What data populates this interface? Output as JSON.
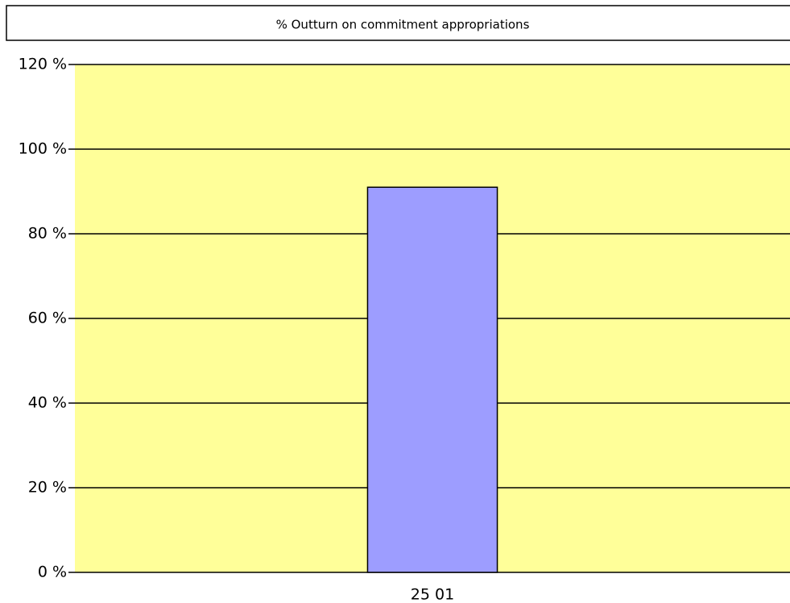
{
  "chart_data": {
    "type": "bar",
    "title": "% Outturn on commitment appropriations",
    "categories": [
      "25 01"
    ],
    "values": [
      91
    ],
    "color": "#9d9dff",
    "plot_background": "#ffff99",
    "ylim": [
      0,
      120
    ],
    "yticks": [
      {
        "value": 0,
        "label": "0 %"
      },
      {
        "value": 20,
        "label": "20 %"
      },
      {
        "value": 40,
        "label": "40 %"
      },
      {
        "value": 60,
        "label": "60 %"
      },
      {
        "value": 80,
        "label": "80 %"
      },
      {
        "value": 100,
        "label": "100 %"
      },
      {
        "value": 120,
        "label": "120 %"
      }
    ],
    "grid": true
  }
}
